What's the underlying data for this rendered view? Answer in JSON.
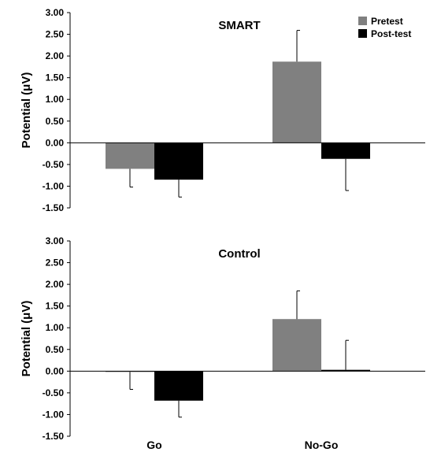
{
  "chart_data": {
    "type": "bar",
    "categories": [
      "Go",
      "No-Go"
    ],
    "ylabel": "Potential (μV)",
    "ylim": [
      -1.5,
      3.0
    ],
    "yticks": [
      "3.00",
      "2.50",
      "2.00",
      "1.50",
      "1.00",
      "0.50",
      "0.00",
      "-0.50",
      "-1.00",
      "-1.50"
    ],
    "legend": {
      "placement": "top-right"
    },
    "series_styles": [
      {
        "name": "Pretest",
        "color": "#808080"
      },
      {
        "name": "Post-test",
        "color": "#000000"
      }
    ],
    "panels": [
      {
        "title": "SMART",
        "series": [
          {
            "name": "Pretest",
            "values": [
              -0.6,
              1.87
            ],
            "errors": [
              0.42,
              0.72
            ]
          },
          {
            "name": "Post-test",
            "values": [
              -0.85,
              -0.37
            ],
            "errors": [
              0.4,
              0.73
            ]
          }
        ]
      },
      {
        "title": "Control",
        "series": [
          {
            "name": "Pretest",
            "values": [
              -0.02,
              1.2
            ],
            "errors": [
              0.4,
              0.65
            ]
          },
          {
            "name": "Post-test",
            "values": [
              -0.68,
              0.03
            ],
            "errors": [
              0.38,
              0.68
            ]
          }
        ]
      }
    ],
    "grid": false
  }
}
